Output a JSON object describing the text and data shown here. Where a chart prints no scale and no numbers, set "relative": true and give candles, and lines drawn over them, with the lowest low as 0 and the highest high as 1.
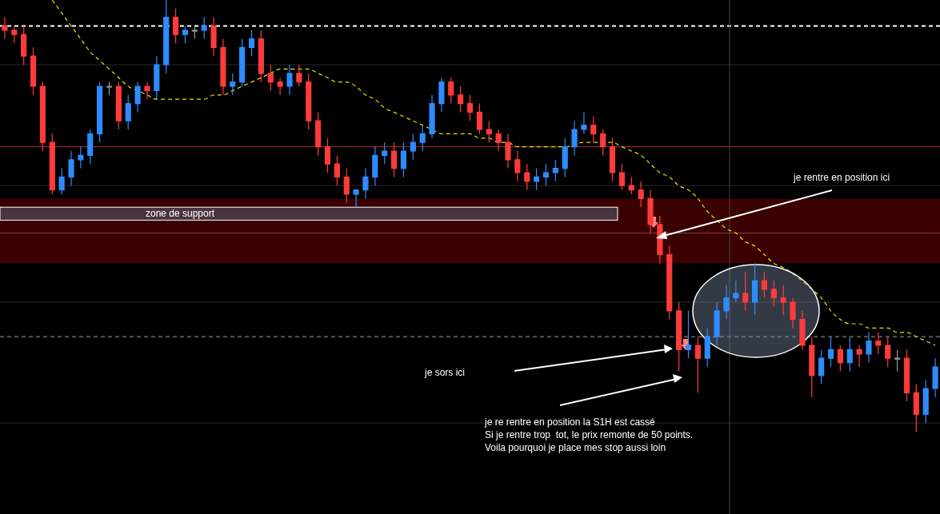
{
  "chart_data": {
    "type": "candlestick",
    "relative": true,
    "tick_labels": false,
    "categories": [
      null,
      null,
      null,
      null,
      null,
      null,
      null,
      null,
      null,
      null,
      null,
      null,
      null,
      null,
      null,
      null,
      null,
      null,
      null,
      null,
      null,
      null,
      null,
      null,
      null,
      null,
      null,
      null,
      null,
      null,
      null,
      null,
      null,
      null,
      null,
      null,
      null,
      null,
      null,
      null,
      null,
      null,
      null,
      null,
      null,
      null,
      null,
      null,
      null,
      null,
      null,
      null,
      null,
      null,
      null,
      null,
      null,
      null,
      null,
      null,
      null,
      null,
      null,
      null,
      null,
      null,
      null,
      null,
      null,
      null,
      null,
      null,
      null,
      null,
      null,
      null,
      null,
      null,
      null,
      null,
      null,
      null,
      null,
      null,
      null,
      null,
      null,
      null,
      null,
      null,
      null,
      null,
      null,
      null,
      null,
      null,
      null,
      null,
      null
    ],
    "ohlc": [
      [
        0.94,
        0.96,
        0.91,
        0.93
      ],
      [
        0.93,
        0.94,
        0.9,
        0.92
      ],
      [
        0.92,
        0.94,
        0.85,
        0.87
      ],
      [
        0.87,
        0.89,
        0.78,
        0.8
      ],
      [
        0.8,
        0.81,
        0.65,
        0.67
      ],
      [
        0.67,
        0.69,
        0.55,
        0.56
      ],
      [
        0.56,
        0.61,
        0.55,
        0.59
      ],
      [
        0.59,
        0.65,
        0.57,
        0.63
      ],
      [
        0.63,
        0.66,
        0.61,
        0.64
      ],
      [
        0.64,
        0.7,
        0.62,
        0.69
      ],
      [
        0.69,
        0.81,
        0.67,
        0.8
      ],
      [
        0.8,
        0.81,
        0.78,
        0.8
      ],
      [
        0.8,
        0.81,
        0.7,
        0.72
      ],
      [
        0.72,
        0.78,
        0.7,
        0.76
      ],
      [
        0.76,
        0.81,
        0.74,
        0.8
      ],
      [
        0.8,
        0.81,
        0.77,
        0.79
      ],
      [
        0.79,
        0.87,
        0.77,
        0.85
      ],
      [
        0.85,
        1,
        0.83,
        0.96
      ],
      [
        0.96,
        0.98,
        0.9,
        0.92
      ],
      [
        0.92,
        0.94,
        0.9,
        0.93
      ],
      [
        0.93,
        0.94,
        0.91,
        0.93
      ],
      [
        0.93,
        0.96,
        0.91,
        0.94
      ],
      [
        0.94,
        0.96,
        0.87,
        0.89
      ],
      [
        0.89,
        0.91,
        0.78,
        0.8
      ],
      [
        0.8,
        0.83,
        0.78,
        0.81
      ],
      [
        0.81,
        0.91,
        0.8,
        0.89
      ],
      [
        0.89,
        0.93,
        0.87,
        0.91
      ],
      [
        0.91,
        0.93,
        0.81,
        0.83
      ],
      [
        0.83,
        0.85,
        0.79,
        0.81
      ],
      [
        0.81,
        0.82,
        0.78,
        0.8
      ],
      [
        0.8,
        0.85,
        0.78,
        0.83
      ],
      [
        0.83,
        0.85,
        0.8,
        0.81
      ],
      [
        0.81,
        0.83,
        0.7,
        0.72
      ],
      [
        0.72,
        0.74,
        0.64,
        0.66
      ],
      [
        0.66,
        0.68,
        0.6,
        0.62
      ],
      [
        0.62,
        0.64,
        0.57,
        0.59
      ],
      [
        0.59,
        0.61,
        0.53,
        0.55
      ],
      [
        0.55,
        0.56,
        0.52,
        0.56
      ],
      [
        0.56,
        0.61,
        0.54,
        0.59
      ],
      [
        0.59,
        0.66,
        0.57,
        0.64
      ],
      [
        0.64,
        0.67,
        0.62,
        0.65
      ],
      [
        0.65,
        0.67,
        0.59,
        0.61
      ],
      [
        0.61,
        0.67,
        0.59,
        0.65
      ],
      [
        0.65,
        0.69,
        0.63,
        0.67
      ],
      [
        0.67,
        0.71,
        0.65,
        0.69
      ],
      [
        0.69,
        0.78,
        0.68,
        0.76
      ],
      [
        0.76,
        0.82,
        0.74,
        0.81
      ],
      [
        0.81,
        0.82,
        0.76,
        0.78
      ],
      [
        0.78,
        0.8,
        0.74,
        0.76
      ],
      [
        0.76,
        0.78,
        0.72,
        0.74
      ],
      [
        0.74,
        0.76,
        0.69,
        0.7
      ],
      [
        0.7,
        0.72,
        0.67,
        0.69
      ],
      [
        0.69,
        0.7,
        0.65,
        0.67
      ],
      [
        0.67,
        0.69,
        0.61,
        0.63
      ],
      [
        0.63,
        0.65,
        0.58,
        0.6
      ],
      [
        0.6,
        0.62,
        0.56,
        0.58
      ],
      [
        0.58,
        0.61,
        0.56,
        0.59
      ],
      [
        0.59,
        0.62,
        0.57,
        0.6
      ],
      [
        0.6,
        0.63,
        0.58,
        0.61
      ],
      [
        0.61,
        0.68,
        0.59,
        0.66
      ],
      [
        0.66,
        0.72,
        0.64,
        0.7
      ],
      [
        0.7,
        0.74,
        0.69,
        0.71
      ],
      [
        0.71,
        0.73,
        0.67,
        0.69
      ],
      [
        0.69,
        0.7,
        0.64,
        0.66
      ],
      [
        0.66,
        0.68,
        0.58,
        0.6
      ],
      [
        0.6,
        0.62,
        0.56,
        0.57
      ],
      [
        0.57,
        0.59,
        0.55,
        0.56
      ],
      [
        0.56,
        0.58,
        0.52,
        0.54
      ],
      [
        0.54,
        0.56,
        0.46,
        0.48
      ],
      [
        0.48,
        0.5,
        0.39,
        0.41
      ],
      [
        0.41,
        0.43,
        0.26,
        0.28
      ],
      [
        0.28,
        0.3,
        0.14,
        0.19
      ],
      [
        0.19,
        0.28,
        0.17,
        0.2
      ],
      [
        0.2,
        0.22,
        0.09,
        0.17
      ],
      [
        0.17,
        0.24,
        0.15,
        0.22
      ],
      [
        0.22,
        0.3,
        0.2,
        0.28
      ],
      [
        0.28,
        0.34,
        0.26,
        0.31
      ],
      [
        0.31,
        0.35,
        0.3,
        0.32
      ],
      [
        0.32,
        0.37,
        0.28,
        0.3
      ],
      [
        0.3,
        0.39,
        0.27,
        0.35
      ],
      [
        0.35,
        0.37,
        0.31,
        0.33
      ],
      [
        0.33,
        0.35,
        0.29,
        0.31
      ],
      [
        0.31,
        0.34,
        0.27,
        0.3
      ],
      [
        0.3,
        0.31,
        0.24,
        0.26
      ],
      [
        0.26,
        0.28,
        0.19,
        0.2
      ],
      [
        0.2,
        0.22,
        0.08,
        0.13
      ],
      [
        0.13,
        0.19,
        0.11,
        0.17
      ],
      [
        0.17,
        0.22,
        0.15,
        0.19
      ],
      [
        0.19,
        0.2,
        0.14,
        0.16
      ],
      [
        0.16,
        0.22,
        0.14,
        0.19
      ],
      [
        0.19,
        0.2,
        0.15,
        0.18
      ],
      [
        0.18,
        0.23,
        0.16,
        0.21
      ],
      [
        0.21,
        0.23,
        0.18,
        0.2
      ],
      [
        0.2,
        0.22,
        0.15,
        0.17
      ],
      [
        0.17,
        0.19,
        0.14,
        0.17
      ],
      [
        0.17,
        0.19,
        0.07,
        0.09
      ],
      [
        0.09,
        0.11,
        0,
        0.04
      ],
      [
        0.04,
        0.12,
        0.02,
        0.1
      ],
      [
        0.1,
        0.17,
        0.08,
        0.15
      ]
    ],
    "colors": [
      "#ff3b3b",
      "#ff3b3b",
      "#ff3b3b",
      "#ff3b3b",
      "#ff3b3b",
      "#ff3b3b",
      "#2f8cff",
      "#2f8cff",
      "#2f8cff",
      "#2f8cff",
      "#2f8cff",
      "#9a9a9a",
      "#ff3b3b",
      "#2f8cff",
      "#2f8cff",
      "#ff3b3b",
      "#2f8cff",
      "#2f8cff",
      "#ff3b3b",
      "#2f8cff",
      "#9a9a9a",
      "#2f8cff",
      "#ff3b3b",
      "#ff3b3b",
      "#2f8cff",
      "#2f8cff",
      "#2f8cff",
      "#ff3b3b",
      "#ff3b3b",
      "#ff3b3b",
      "#2f8cff",
      "#ff3b3b",
      "#ff3b3b",
      "#ff3b3b",
      "#ff3b3b",
      "#ff3b3b",
      "#ff3b3b",
      "#2f8cff",
      "#2f8cff",
      "#2f8cff",
      "#2f8cff",
      "#ff3b3b",
      "#2f8cff",
      "#2f8cff",
      "#2f8cff",
      "#2f8cff",
      "#2f8cff",
      "#ff3b3b",
      "#ff3b3b",
      "#ff3b3b",
      "#ff3b3b",
      "#ff3b3b",
      "#ff3b3b",
      "#ff3b3b",
      "#ff3b3b",
      "#ff3b3b",
      "#2f8cff",
      "#2f8cff",
      "#2f8cff",
      "#2f8cff",
      "#2f8cff",
      "#2f8cff",
      "#ff3b3b",
      "#ff3b3b",
      "#ff3b3b",
      "#ff3b3b",
      "#ff3b3b",
      "#ff3b3b",
      "#ff3b3b",
      "#ff3b3b",
      "#ff3b3b",
      "#ff3b3b",
      "#2f8cff",
      "#ff3b3b",
      "#2f8cff",
      "#2f8cff",
      "#2f8cff",
      "#2f8cff",
      "#ff3b3b",
      "#2f8cff",
      "#ff3b3b",
      "#ff3b3b",
      "#ff3b3b",
      "#ff3b3b",
      "#ff3b3b",
      "#ff3b3b",
      "#2f8cff",
      "#2f8cff",
      "#ff3b3b",
      "#2f8cff",
      "#ff3b3b",
      "#2f8cff",
      "#ff3b3b",
      "#ff3b3b",
      "#9a9a9a",
      "#ff3b3b",
      "#ff3b3b",
      "#2f8cff",
      "#2f8cff"
    ],
    "series": [
      {
        "type": "line",
        "color": "#e6e600",
        "line_style": "dashed",
        "values": [
          null,
          null,
          null,
          null,
          null,
          1.0,
          0.97,
          0.94,
          0.91,
          0.88,
          0.86,
          0.84,
          0.82,
          0.8,
          0.79,
          0.78,
          0.77,
          0.77,
          0.77,
          0.77,
          0.77,
          0.77,
          0.78,
          0.78,
          0.79,
          0.8,
          0.81,
          0.82,
          0.83,
          0.84,
          0.84,
          0.84,
          0.84,
          0.83,
          0.82,
          0.81,
          0.81,
          0.8,
          0.78,
          0.77,
          0.75,
          0.74,
          0.73,
          0.72,
          0.71,
          0.7,
          0.69,
          0.69,
          0.69,
          0.69,
          0.68,
          0.68,
          0.67,
          0.67,
          0.66,
          0.66,
          0.66,
          0.66,
          0.66,
          0.66,
          null,
          0.67,
          0.67,
          0.67,
          0.67,
          0.66,
          0.65,
          0.64,
          0.62,
          0.6,
          0.59,
          0.57,
          0.56,
          0.54,
          0.51,
          0.49,
          0.47,
          0.46,
          0.44,
          0.43,
          0.41,
          0.39,
          0.38,
          null,
          null,
          0.33,
          0.31,
          0.28,
          0.26,
          0.25,
          0.25,
          0.24,
          0.24,
          0.24,
          0.23,
          0.23,
          0.22,
          0.21,
          0.2
        ]
      }
    ],
    "ref_lines": [
      {
        "axis": "y",
        "value": 0.94,
        "color": "#ffffff",
        "line_style": "dashed"
      },
      {
        "axis": "y",
        "value": 0.66,
        "color": "#b03030",
        "line_style": "solid"
      },
      {
        "axis": "y",
        "value": 0.46,
        "color": "#8a4040",
        "line_style": "solid"
      },
      {
        "axis": "y",
        "value": 0.22,
        "color": "#555555",
        "line_style": "dashed"
      },
      {
        "axis": "y",
        "value": 0.85,
        "color": "#2a2a2a",
        "line_style": "solid"
      },
      {
        "axis": "y",
        "value": 0.57,
        "color": "#2a2a2a",
        "line_style": "solid"
      },
      {
        "axis": "y",
        "value": 0.3,
        "color": "#2a2a2a",
        "line_style": "solid"
      },
      {
        "axis": "y",
        "value": 0.02,
        "color": "#2a2a2a",
        "line_style": "solid"
      }
    ],
    "bands": [
      {
        "axis": "y",
        "from": 0.39,
        "to": 0.54,
        "color": "#4a0000"
      },
      {
        "axis": "y",
        "from": 0.49,
        "to": 0.52,
        "label": "zone de support",
        "color": "#4a3440"
      }
    ],
    "annotations": [
      "je rentre en position ici",
      "je sors ici",
      "je re rentre en position la S1H est cassé\nSi je rentre trop  tot, le prix remonte de 50 points.\nVoila pourquoi je place mes stop aussi loin"
    ]
  }
}
